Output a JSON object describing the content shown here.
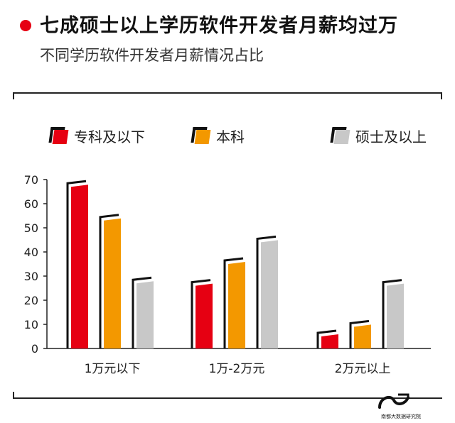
{
  "header": {
    "title": "七成硕士以上学历软件开发者月薪均过万",
    "subtitle": "不同学历软件开发者月薪情况占比"
  },
  "legend": [
    {
      "label": "专科及以下",
      "color": "#e60012"
    },
    {
      "label": "本科",
      "color": "#f39800"
    },
    {
      "label": "硕士及以上",
      "color": "#c8c8c8"
    }
  ],
  "chart_data": {
    "type": "bar",
    "categories": [
      "1万元以下",
      "1万-2万元",
      "2万元以上"
    ],
    "series": [
      {
        "name": "专科及以下",
        "values": [
          67,
          26,
          5
        ],
        "color": "#e60012"
      },
      {
        "name": "本科",
        "values": [
          53,
          35,
          9
        ],
        "color": "#f39800"
      },
      {
        "name": "硕士及以上",
        "values": [
          27,
          44,
          26
        ],
        "color": "#c8c8c8"
      }
    ],
    "yticks": [
      0,
      10,
      20,
      30,
      40,
      50,
      60,
      70
    ],
    "ylim": [
      0,
      70
    ],
    "grid": false,
    "legend_position": "top"
  },
  "footer": {
    "logo_text": "南都大数据研究院"
  }
}
